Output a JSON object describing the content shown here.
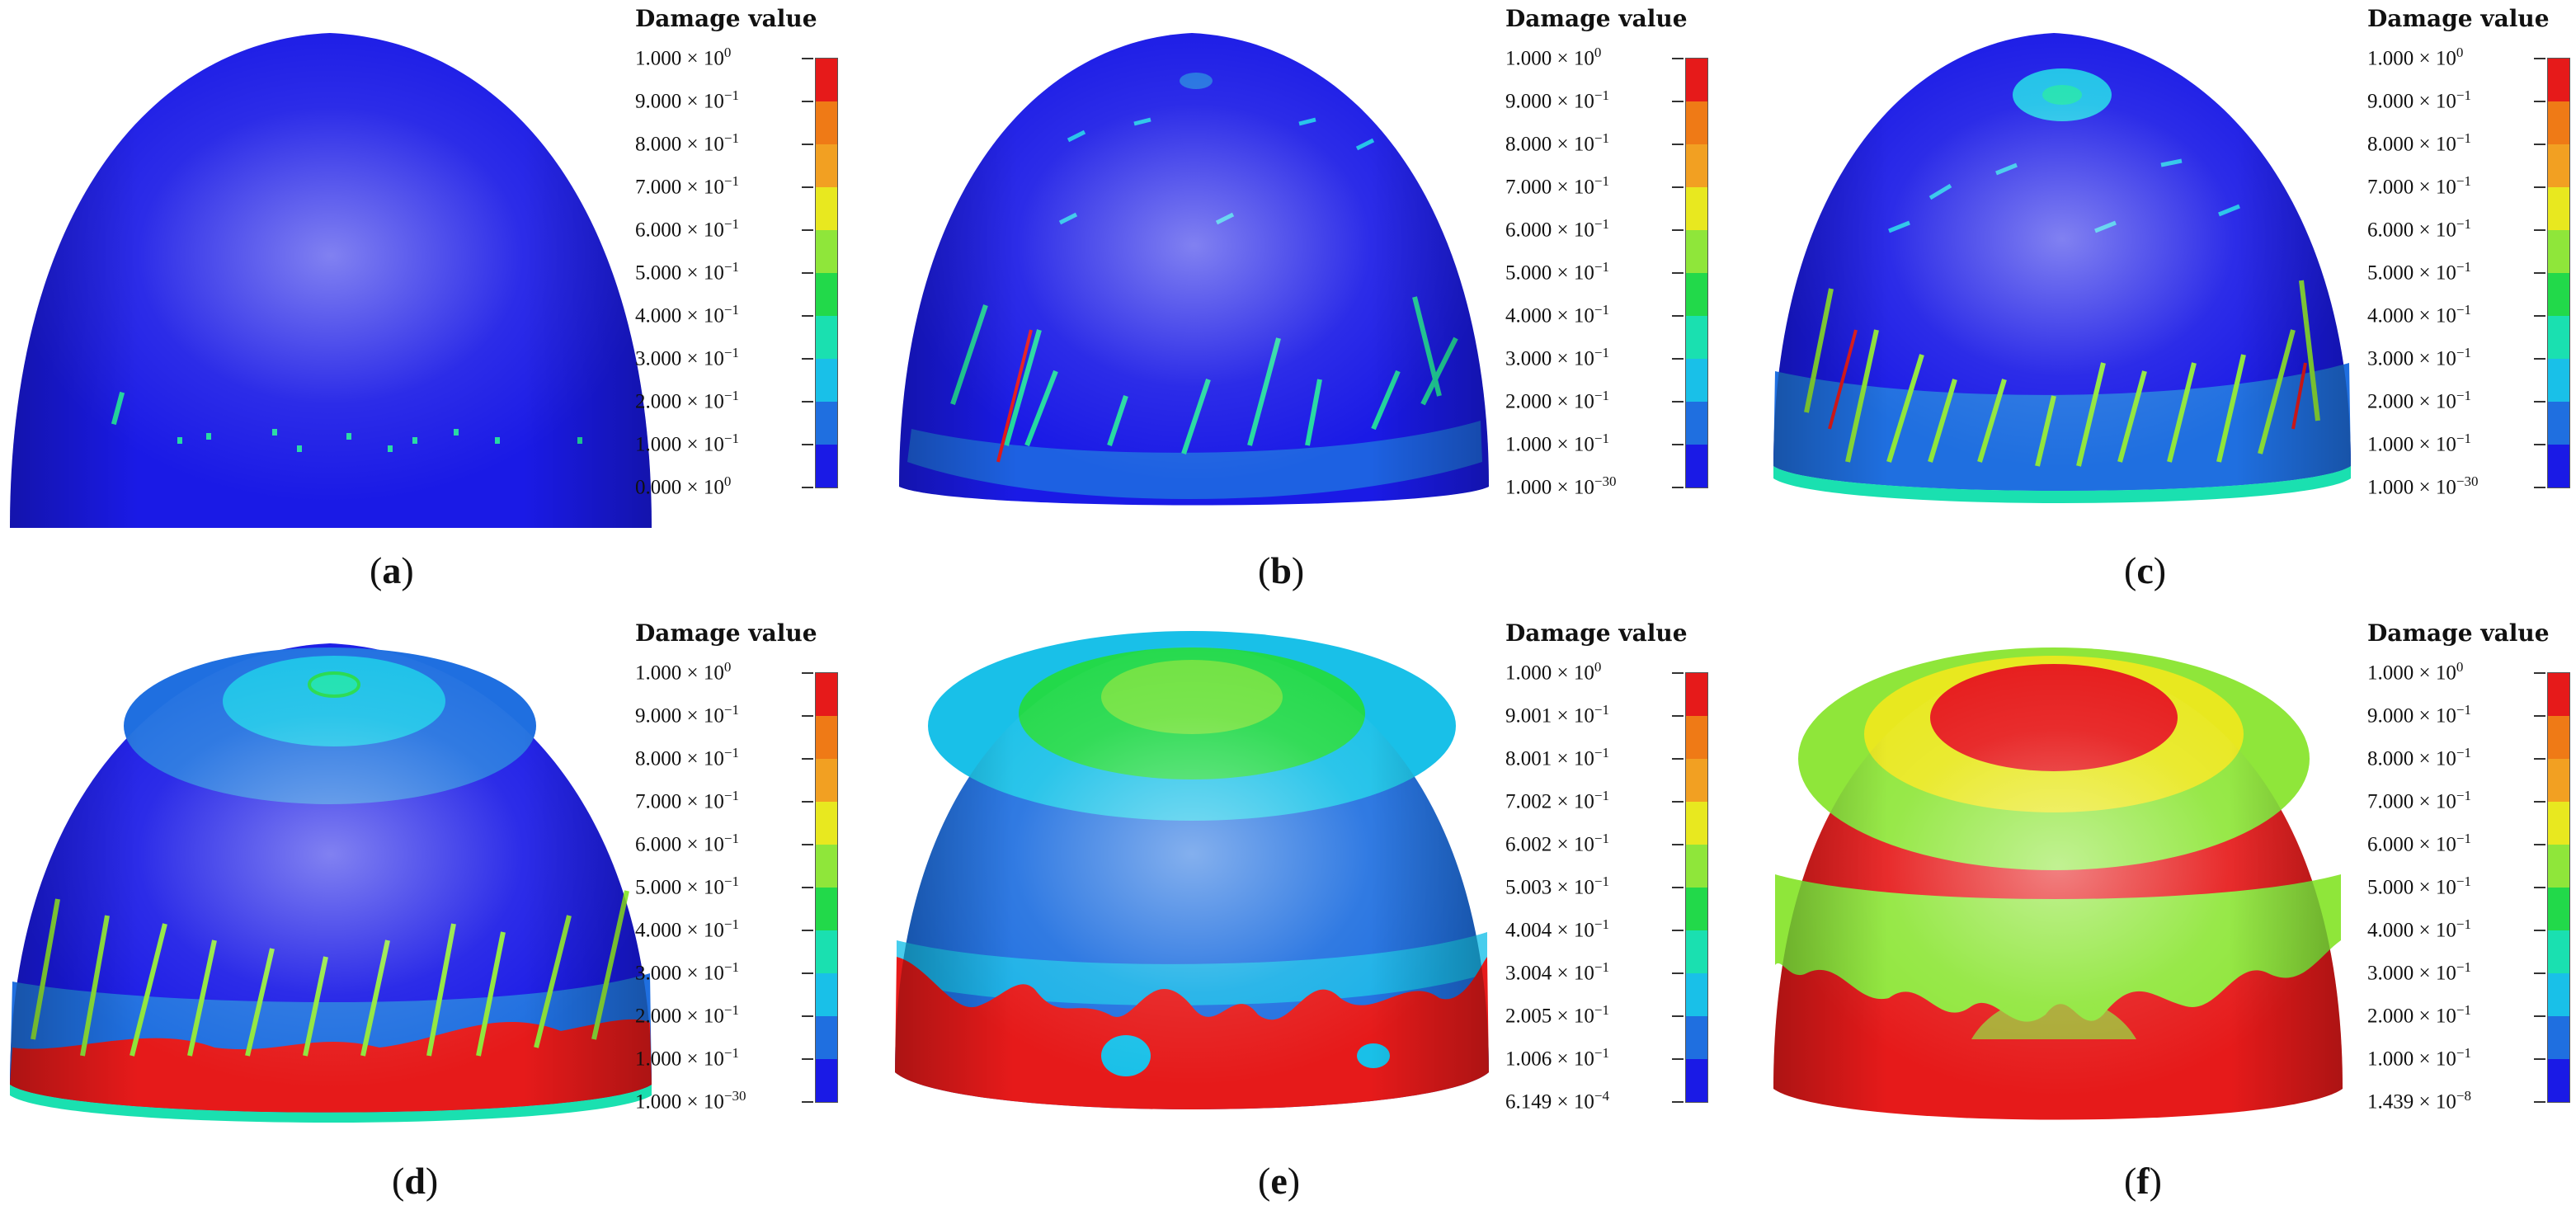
{
  "legend_title": "Damage value",
  "colors": [
    "#1a1ae6",
    "#1f6fe0",
    "#19c0e8",
    "#1ae0b0",
    "#22d94a",
    "#8fe63a",
    "#e8e81f",
    "#f2a022",
    "#ef7a16",
    "#e61a1a"
  ],
  "panels": [
    {
      "id": "a",
      "caption_letter": "a",
      "labels": [
        {
          "mantissa": "1.000 × 10",
          "exp": "0"
        },
        {
          "mantissa": "9.000 × 10",
          "exp": "−1"
        },
        {
          "mantissa": "8.000 × 10",
          "exp": "−1"
        },
        {
          "mantissa": "7.000 × 10",
          "exp": "−1"
        },
        {
          "mantissa": "6.000 × 10",
          "exp": "−1"
        },
        {
          "mantissa": "5.000 × 10",
          "exp": "−1"
        },
        {
          "mantissa": "4.000 × 10",
          "exp": "−1"
        },
        {
          "mantissa": "3.000 × 10",
          "exp": "−1"
        },
        {
          "mantissa": "2.000 × 10",
          "exp": "−1"
        },
        {
          "mantissa": "1.000 × 10",
          "exp": "−1"
        },
        {
          "mantissa": "0.000 × 10",
          "exp": "0"
        }
      ]
    },
    {
      "id": "b",
      "caption_letter": "b",
      "labels": [
        {
          "mantissa": "1.000 × 10",
          "exp": "0"
        },
        {
          "mantissa": "9.000 × 10",
          "exp": "−1"
        },
        {
          "mantissa": "8.000 × 10",
          "exp": "−1"
        },
        {
          "mantissa": "7.000 × 10",
          "exp": "−1"
        },
        {
          "mantissa": "6.000 × 10",
          "exp": "−1"
        },
        {
          "mantissa": "5.000 × 10",
          "exp": "−1"
        },
        {
          "mantissa": "4.000 × 10",
          "exp": "−1"
        },
        {
          "mantissa": "3.000 × 10",
          "exp": "−1"
        },
        {
          "mantissa": "2.000 × 10",
          "exp": "−1"
        },
        {
          "mantissa": "1.000 × 10",
          "exp": "−1"
        },
        {
          "mantissa": "1.000 × 10",
          "exp": "−30"
        }
      ]
    },
    {
      "id": "c",
      "caption_letter": "c",
      "labels": [
        {
          "mantissa": "1.000 × 10",
          "exp": "0"
        },
        {
          "mantissa": "9.000 × 10",
          "exp": "−1"
        },
        {
          "mantissa": "8.000 × 10",
          "exp": "−1"
        },
        {
          "mantissa": "7.000 × 10",
          "exp": "−1"
        },
        {
          "mantissa": "6.000 × 10",
          "exp": "−1"
        },
        {
          "mantissa": "5.000 × 10",
          "exp": "−1"
        },
        {
          "mantissa": "4.000 × 10",
          "exp": "−1"
        },
        {
          "mantissa": "3.000 × 10",
          "exp": "−1"
        },
        {
          "mantissa": "2.000 × 10",
          "exp": "−1"
        },
        {
          "mantissa": "1.000 × 10",
          "exp": "−1"
        },
        {
          "mantissa": "1.000 × 10",
          "exp": "−30"
        }
      ]
    },
    {
      "id": "d",
      "caption_letter": "d",
      "labels": [
        {
          "mantissa": "1.000 × 10",
          "exp": "0"
        },
        {
          "mantissa": "9.000 × 10",
          "exp": "−1"
        },
        {
          "mantissa": "8.000 × 10",
          "exp": "−1"
        },
        {
          "mantissa": "7.000 × 10",
          "exp": "−1"
        },
        {
          "mantissa": "6.000 × 10",
          "exp": "−1"
        },
        {
          "mantissa": "5.000 × 10",
          "exp": "−1"
        },
        {
          "mantissa": "4.000 × 10",
          "exp": "−1"
        },
        {
          "mantissa": "3.000 × 10",
          "exp": "−1"
        },
        {
          "mantissa": "2.000 × 10",
          "exp": "−1"
        },
        {
          "mantissa": "1.000 × 10",
          "exp": "−1"
        },
        {
          "mantissa": "1.000 × 10",
          "exp": "−30"
        }
      ]
    },
    {
      "id": "e",
      "caption_letter": "e",
      "labels": [
        {
          "mantissa": "1.000 × 10",
          "exp": "0"
        },
        {
          "mantissa": "9.001 × 10",
          "exp": "−1"
        },
        {
          "mantissa": "8.001 × 10",
          "exp": "−1"
        },
        {
          "mantissa": "7.002 × 10",
          "exp": "−1"
        },
        {
          "mantissa": "6.002 × 10",
          "exp": "−1"
        },
        {
          "mantissa": "5.003 × 10",
          "exp": "−1"
        },
        {
          "mantissa": "4.004 × 10",
          "exp": "−1"
        },
        {
          "mantissa": "3.004 × 10",
          "exp": "−1"
        },
        {
          "mantissa": "2.005 × 10",
          "exp": "−1"
        },
        {
          "mantissa": "1.006 × 10",
          "exp": "−1"
        },
        {
          "mantissa": "6.149 × 10",
          "exp": "−4"
        }
      ]
    },
    {
      "id": "f",
      "caption_letter": "f",
      "labels": [
        {
          "mantissa": "1.000 × 10",
          "exp": "0"
        },
        {
          "mantissa": "9.000 × 10",
          "exp": "−1"
        },
        {
          "mantissa": "8.000 × 10",
          "exp": "−1"
        },
        {
          "mantissa": "7.000 × 10",
          "exp": "−1"
        },
        {
          "mantissa": "6.000 × 10",
          "exp": "−1"
        },
        {
          "mantissa": "5.000 × 10",
          "exp": "−1"
        },
        {
          "mantissa": "4.000 × 10",
          "exp": "−1"
        },
        {
          "mantissa": "3.000 × 10",
          "exp": "−1"
        },
        {
          "mantissa": "2.000 × 10",
          "exp": "−1"
        },
        {
          "mantissa": "1.000 × 10",
          "exp": "−1"
        },
        {
          "mantissa": "1.439 × 10",
          "exp": "−8"
        }
      ]
    }
  ]
}
